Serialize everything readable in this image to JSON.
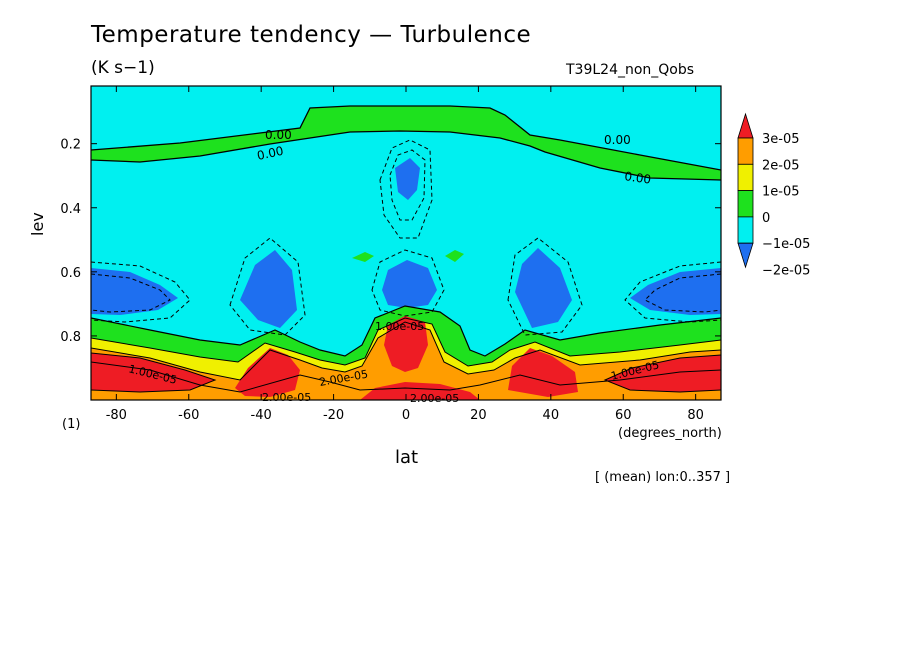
{
  "title": "Temperature tendency — Turbulence",
  "units": "(K s−1)",
  "run_id": "T39L24_non_Qobs",
  "ylabel": "lev",
  "xlabel": "lat",
  "xunit": "(degrees_north)",
  "y_scale_note": "(1)",
  "mean_note": "[ (mean) lon:0..357 ]",
  "chart_data": {
    "type": "heatmap",
    "title": "Temperature tendency — Turbulence",
    "xlabel": "lat",
    "ylabel": "lev",
    "xlim": [
      -87,
      87
    ],
    "ylim": [
      1.0,
      0.02
    ],
    "x_ticks": [
      -80,
      -60,
      -40,
      -20,
      0,
      20,
      40,
      60,
      80
    ],
    "y_ticks": [
      0.2,
      0.4,
      0.6,
      0.8
    ],
    "colorbar": {
      "levels": [
        "3e-05",
        "2e-05",
        "1e-05",
        "0",
        "−1e-05",
        "−2e-05"
      ],
      "colors": [
        "#ee1c24",
        "#ff9d00",
        "#f0f000",
        "#1ee11e",
        "#00f0f0",
        "#1e6ff0"
      ]
    },
    "contour_labels": [
      "0.00",
      "0.00",
      "0.00",
      "0.00",
      "1.00e-05",
      "1.00e-05",
      "1.00e-05",
      "2.00e-05",
      "2.00e-05",
      "2.00e-05"
    ]
  },
  "colors": {
    "red": "#ee1c24",
    "orange": "#ff9d00",
    "yellow": "#f0f000",
    "green": "#1ee11e",
    "cyan": "#00f0f0",
    "blue": "#1e6ff0"
  }
}
